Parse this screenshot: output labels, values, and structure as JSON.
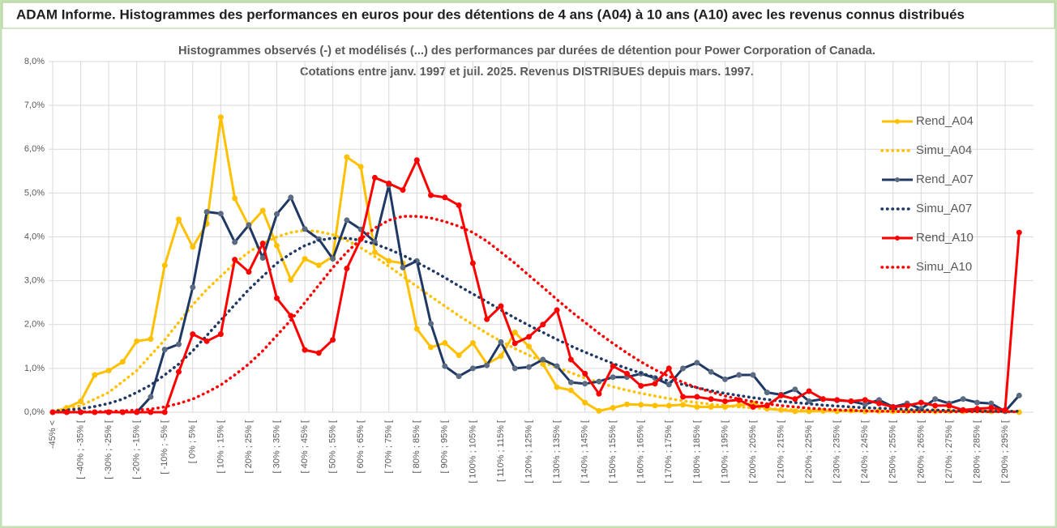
{
  "header": {
    "title": "ADAM Informe. Histogrammes des performances en euros pour des détentions de 4 ans (A04) à 10 ans (A10) avec les revenus connus distribués"
  },
  "chart_data": {
    "type": "line",
    "title": "Histogrammes observés (-) et modélisés (...) des performances par durées de détention pour Power Corporation of Canada.",
    "subtitle": "Cotations entre janv. 1997 et juil. 2025. Revenus DISTRIBUES depuis mars. 1997.",
    "categories": [
      "-45% <",
      null,
      "[ -40% ; -35% [",
      null,
      "[ -30% ; -25% [",
      null,
      "[ -20% ; -15% [",
      null,
      "[ -10% ; -5% [",
      null,
      "[ 0% ; 5% [",
      null,
      "[ 10% ; 15% [",
      null,
      "[ 20% ; 25% [",
      null,
      "[ 30% ; 35% [",
      null,
      "[ 40% ; 45% [",
      null,
      "[ 50% ; 55% [",
      null,
      "[ 60% ; 65% [",
      null,
      "[ 70% ; 75% [",
      null,
      "[ 80% ; 85% [",
      null,
      "[ 90% ; 95% [",
      null,
      "[ 100% ; 105% [",
      null,
      "[ 110% ; 115% [",
      null,
      "[ 120% ; 125% [",
      null,
      "[ 130% ; 135% [",
      null,
      "[ 140% ; 145% [",
      null,
      "[ 150% ; 155% [",
      null,
      "[ 160% ; 165% [",
      null,
      "[ 170% ; 175% [",
      null,
      "[ 180% ; 185% [",
      null,
      "[ 190% ; 195% [",
      null,
      "[ 200% ; 205% [",
      null,
      "[ 210% ; 215% [",
      null,
      "[ 220% ; 225% [",
      null,
      "[ 230% ; 235% [",
      null,
      "[ 240% ; 245% [",
      null,
      "[ 250% ; 255% [",
      null,
      "[ 260% ; 265% [",
      null,
      "[ 270% ; 275% [",
      null,
      "[ 280% ; 285% [",
      null,
      "[ 290% ; 295% [",
      null
    ],
    "series": [
      {
        "name": "Rend_A04",
        "color": "#ffc000",
        "dotted": false,
        "markers": true,
        "marker_color": "#ffc000",
        "values": [
          0,
          0.1,
          0.25,
          0.85,
          0.95,
          1.15,
          1.62,
          1.67,
          3.35,
          4.4,
          3.77,
          4.3,
          6.73,
          4.88,
          4.25,
          4.6,
          3.8,
          3.02,
          3.5,
          3.35,
          3.55,
          5.82,
          5.6,
          3.65,
          3.45,
          3.4,
          1.9,
          1.48,
          1.58,
          1.3,
          1.58,
          1.1,
          1.28,
          1.82,
          1.5,
          1.1,
          0.57,
          0.5,
          0.22,
          0.03,
          0.1,
          0.18,
          0.17,
          0.15,
          0.15,
          0.17,
          0.12,
          0.12,
          0.12,
          0.16,
          0.2,
          0.08,
          0.05,
          0.02,
          0.02,
          0.03,
          0.02,
          0.04,
          0.02,
          0.03,
          0.02,
          0.03,
          0.05,
          0.02,
          0.03,
          0.02,
          0.04,
          0.02,
          0.03,
          0
        ]
      },
      {
        "name": "Simu_A04",
        "color": "#ffc000",
        "dotted": true,
        "markers": false,
        "values": [
          0.03,
          0.08,
          0.15,
          0.3,
          0.45,
          0.7,
          0.95,
          1.3,
          1.65,
          2.05,
          2.45,
          2.8,
          3.1,
          3.4,
          3.65,
          3.85,
          4.0,
          4.1,
          4.15,
          4.12,
          4.05,
          3.92,
          3.75,
          3.55,
          3.33,
          3.1,
          2.87,
          2.64,
          2.42,
          2.2,
          2.0,
          1.8,
          1.62,
          1.45,
          1.3,
          1.15,
          1.02,
          0.9,
          0.78,
          0.68,
          0.58,
          0.5,
          0.43,
          0.37,
          0.31,
          0.26,
          0.22,
          0.18,
          0.15,
          0.12,
          0.1,
          0.08,
          0.07,
          0.05,
          0.04,
          0.04,
          0.03,
          0.02,
          0.02,
          0.02,
          0.01,
          0.01,
          0.01,
          0.01,
          0.01,
          0.01,
          0.01,
          0.01,
          0.01,
          0.01
        ]
      },
      {
        "name": "Rend_A07",
        "color": "#1f3864",
        "dotted": false,
        "markers": true,
        "marker_color": "#5b6b82",
        "values": [
          0,
          0,
          0,
          0,
          0,
          0,
          0,
          0.35,
          1.43,
          1.55,
          2.85,
          4.57,
          4.53,
          3.88,
          4.27,
          3.52,
          4.52,
          4.9,
          4.18,
          3.95,
          3.5,
          4.38,
          4.17,
          3.88,
          5.18,
          3.3,
          3.45,
          2.02,
          1.05,
          0.82,
          1.0,
          1.07,
          1.6,
          1.0,
          1.03,
          1.2,
          1.05,
          0.68,
          0.65,
          0.7,
          0.8,
          0.8,
          0.88,
          0.78,
          0.63,
          1.0,
          1.13,
          0.92,
          0.75,
          0.85,
          0.85,
          0.45,
          0.4,
          0.52,
          0.25,
          0.3,
          0.27,
          0.25,
          0.18,
          0.28,
          0.12,
          0.2,
          0.08,
          0.3,
          0.2,
          0.3,
          0.22,
          0.2,
          0.02,
          0.38
        ]
      },
      {
        "name": "Simu_A07",
        "color": "#1f3864",
        "dotted": true,
        "markers": false,
        "values": [
          0.02,
          0.05,
          0.08,
          0.13,
          0.2,
          0.3,
          0.45,
          0.62,
          0.85,
          1.1,
          1.4,
          1.75,
          2.1,
          2.45,
          2.8,
          3.1,
          3.4,
          3.62,
          3.8,
          3.92,
          3.97,
          3.97,
          3.92,
          3.84,
          3.72,
          3.58,
          3.42,
          3.25,
          3.07,
          2.88,
          2.7,
          2.52,
          2.33,
          2.15,
          1.98,
          1.82,
          1.66,
          1.51,
          1.37,
          1.24,
          1.11,
          1.0,
          0.89,
          0.8,
          0.71,
          0.63,
          0.56,
          0.49,
          0.43,
          0.38,
          0.33,
          0.29,
          0.25,
          0.22,
          0.19,
          0.16,
          0.14,
          0.12,
          0.1,
          0.09,
          0.08,
          0.06,
          0.05,
          0.05,
          0.04,
          0.03,
          0.03,
          0.02,
          0.02,
          0.02
        ]
      },
      {
        "name": "Rend_A10",
        "color": "#ff0000",
        "dotted": false,
        "markers": true,
        "marker_color": "#ff0000",
        "values": [
          0,
          0,
          0,
          0,
          0,
          0,
          0,
          0,
          0,
          0.92,
          1.78,
          1.62,
          1.78,
          3.48,
          3.2,
          3.85,
          2.6,
          2.2,
          1.42,
          1.35,
          1.65,
          3.28,
          3.95,
          5.35,
          5.22,
          5.07,
          5.75,
          4.95,
          4.9,
          4.72,
          3.4,
          2.12,
          2.42,
          1.57,
          1.72,
          2.0,
          2.33,
          1.2,
          0.88,
          0.42,
          1.05,
          0.88,
          0.6,
          0.65,
          1.0,
          0.35,
          0.35,
          0.3,
          0.25,
          0.28,
          0.12,
          0.15,
          0.38,
          0.3,
          0.48,
          0.3,
          0.28,
          0.25,
          0.28,
          0.2,
          0.12,
          0.15,
          0.22,
          0.15,
          0.15,
          0.05,
          0.08,
          0.1,
          0.05,
          4.1
        ]
      },
      {
        "name": "Simu_A10",
        "color": "#ff0000",
        "dotted": true,
        "markers": false,
        "values": [
          0,
          0,
          0.01,
          0.01,
          0.02,
          0.03,
          0.05,
          0.07,
          0.12,
          0.2,
          0.3,
          0.45,
          0.62,
          0.85,
          1.1,
          1.4,
          1.75,
          2.1,
          2.5,
          2.9,
          3.3,
          3.65,
          3.95,
          4.2,
          4.38,
          4.47,
          4.47,
          4.43,
          4.35,
          4.24,
          4.1,
          3.9,
          3.65,
          3.4,
          3.12,
          2.85,
          2.57,
          2.3,
          2.05,
          1.8,
          1.57,
          1.35,
          1.15,
          0.97,
          0.82,
          0.68,
          0.56,
          0.46,
          0.37,
          0.3,
          0.24,
          0.19,
          0.15,
          0.12,
          0.09,
          0.07,
          0.05,
          0.04,
          0.03,
          0.02,
          0.02,
          0.01,
          0.01,
          0.01,
          0.01,
          0.01,
          0.01,
          0.01,
          0.01,
          0.01
        ]
      }
    ],
    "ylim": [
      0,
      8
    ],
    "yticks": [
      {
        "value": 0,
        "label": "0,0%"
      },
      {
        "value": 1,
        "label": "1,0%"
      },
      {
        "value": 2,
        "label": "2,0%"
      },
      {
        "value": 3,
        "label": "3,0%"
      },
      {
        "value": 4,
        "label": "4,0%"
      },
      {
        "value": 5,
        "label": "5,0%"
      },
      {
        "value": 6,
        "label": "6,0%"
      },
      {
        "value": 7,
        "label": "7,0%"
      },
      {
        "value": 8,
        "label": "8,0%"
      }
    ],
    "grid": true,
    "legend": "upper right"
  }
}
